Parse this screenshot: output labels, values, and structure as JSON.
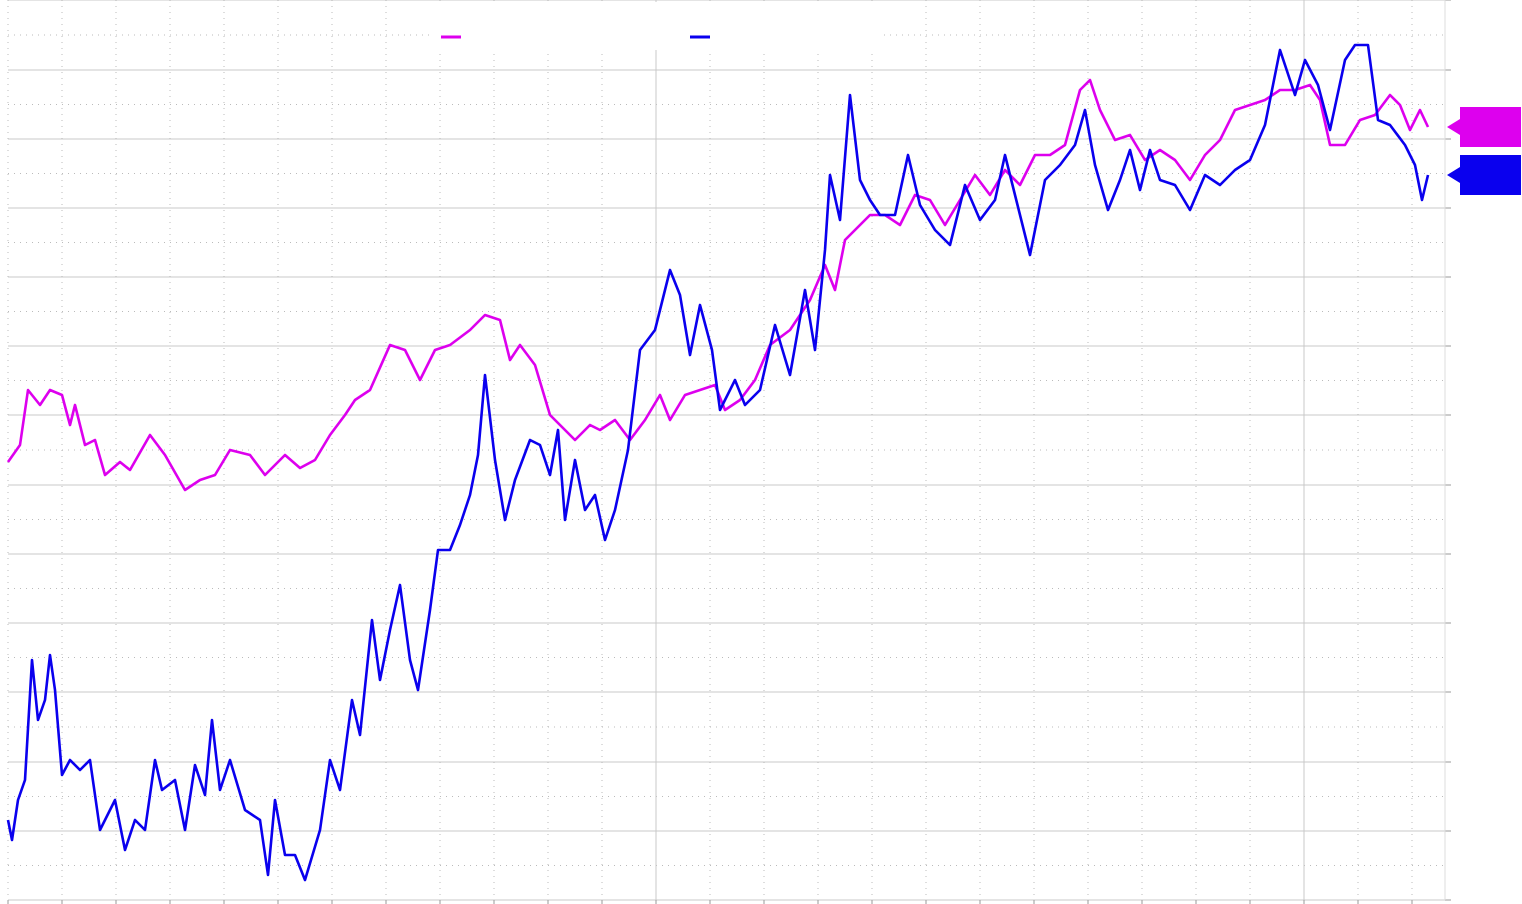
{
  "chart_data": {
    "type": "line",
    "xlim": [
      0,
      1437
    ],
    "ylim": [
      0,
      900
    ],
    "xticks": [
      0,
      54,
      108,
      162,
      216,
      270,
      324,
      378,
      432,
      486,
      540,
      594,
      648,
      702,
      756,
      810,
      864,
      918,
      972,
      1026,
      1080,
      1134,
      1188,
      1242,
      1296,
      1350,
      1404
    ],
    "yticks": [
      0,
      69,
      138,
      208,
      277,
      346,
      415,
      485,
      554,
      623,
      692,
      761,
      830,
      900
    ],
    "grid": true,
    "series": [
      {
        "color": "#dd00ee",
        "x": [
          0,
          12,
          20,
          32,
          42,
          54,
          62,
          67,
          77,
          87,
          97,
          112,
          122,
          142,
          157,
          177,
          192,
          207,
          222,
          242,
          257,
          277,
          292,
          307,
          322,
          337,
          347,
          362,
          382,
          397,
          412,
          427,
          442,
          462,
          477,
          492,
          502,
          512,
          527,
          542,
          557,
          567,
          582,
          592,
          607,
          622,
          637,
          652,
          662,
          677,
          692,
          707,
          717,
          732,
          747,
          762,
          782,
          802,
          817,
          827,
          837,
          852,
          862,
          877,
          892,
          907,
          922,
          937,
          952,
          967,
          982,
          997,
          1012,
          1027,
          1042,
          1057,
          1072,
          1082,
          1092,
          1107,
          1122,
          1137,
          1152,
          1167,
          1182,
          1197,
          1212,
          1227,
          1242,
          1257,
          1272,
          1287,
          1302,
          1312,
          1322,
          1337,
          1352,
          1367,
          1382,
          1392,
          1402,
          1412,
          1420
        ],
        "values": [
          438,
          455,
          510,
          495,
          510,
          505,
          475,
          495,
          455,
          460,
          425,
          438,
          430,
          465,
          445,
          410,
          420,
          425,
          450,
          445,
          425,
          445,
          432,
          440,
          465,
          485,
          500,
          510,
          555,
          550,
          520,
          550,
          555,
          570,
          585,
          580,
          540,
          555,
          535,
          485,
          470,
          460,
          475,
          470,
          480,
          460,
          480,
          505,
          480,
          505,
          510,
          515,
          490,
          500,
          520,
          555,
          570,
          600,
          635,
          610,
          660,
          675,
          685,
          685,
          675,
          705,
          700,
          675,
          700,
          725,
          705,
          730,
          715,
          745,
          745,
          755,
          810,
          820,
          790,
          760,
          765,
          740,
          750,
          740,
          720,
          745,
          760,
          790,
          795,
          800,
          810,
          810,
          815,
          800,
          755,
          755,
          780,
          785,
          805,
          795,
          770,
          790,
          773
        ]
      },
      {
        "color": "#0a00ee",
        "x": [
          0,
          4,
          10,
          17,
          24,
          30,
          37,
          42,
          47,
          54,
          62,
          72,
          82,
          92,
          107,
          117,
          127,
          137,
          147,
          154,
          167,
          177,
          187,
          197,
          204,
          212,
          222,
          237,
          252,
          260,
          267,
          277,
          287,
          297,
          312,
          322,
          332,
          344,
          352,
          364,
          372,
          382,
          392,
          402,
          410,
          422,
          430,
          442,
          452,
          462,
          470,
          477,
          487,
          497,
          507,
          522,
          532,
          542,
          550,
          557,
          567,
          577,
          587,
          597,
          607,
          620,
          632,
          647,
          662,
          672,
          682,
          692,
          704,
          712,
          727,
          737,
          752,
          767,
          782,
          797,
          807,
          817,
          822,
          832,
          842,
          852,
          862,
          872,
          887,
          900,
          912,
          927,
          942,
          957,
          972,
          987,
          997,
          1007,
          1022,
          1037,
          1052,
          1067,
          1077,
          1087,
          1100,
          1112,
          1122,
          1132,
          1142,
          1152,
          1167,
          1182,
          1197,
          1212,
          1227,
          1242,
          1257,
          1272,
          1287,
          1297,
          1310,
          1322,
          1337,
          1347,
          1360,
          1370,
          1382,
          1397,
          1407,
          1414,
          1420
        ],
        "values": [
          80,
          60,
          100,
          120,
          240,
          180,
          200,
          245,
          210,
          125,
          140,
          130,
          140,
          70,
          100,
          50,
          80,
          70,
          140,
          110,
          120,
          70,
          135,
          105,
          180,
          110,
          140,
          90,
          80,
          25,
          100,
          45,
          45,
          20,
          70,
          140,
          110,
          200,
          165,
          280,
          220,
          270,
          315,
          240,
          210,
          290,
          350,
          350,
          375,
          405,
          445,
          525,
          440,
          380,
          420,
          460,
          455,
          425,
          470,
          380,
          440,
          390,
          405,
          360,
          390,
          450,
          550,
          570,
          630,
          605,
          545,
          595,
          550,
          490,
          520,
          495,
          510,
          575,
          525,
          610,
          550,
          650,
          725,
          680,
          805,
          720,
          700,
          685,
          685,
          745,
          695,
          670,
          655,
          715,
          680,
          700,
          745,
          705,
          645,
          720,
          735,
          755,
          790,
          735,
          690,
          720,
          750,
          710,
          750,
          720,
          715,
          690,
          725,
          715,
          730,
          740,
          775,
          850,
          805,
          840,
          815,
          770,
          840,
          855,
          855,
          780,
          775,
          755,
          735,
          700,
          725
        ]
      }
    ]
  }
}
